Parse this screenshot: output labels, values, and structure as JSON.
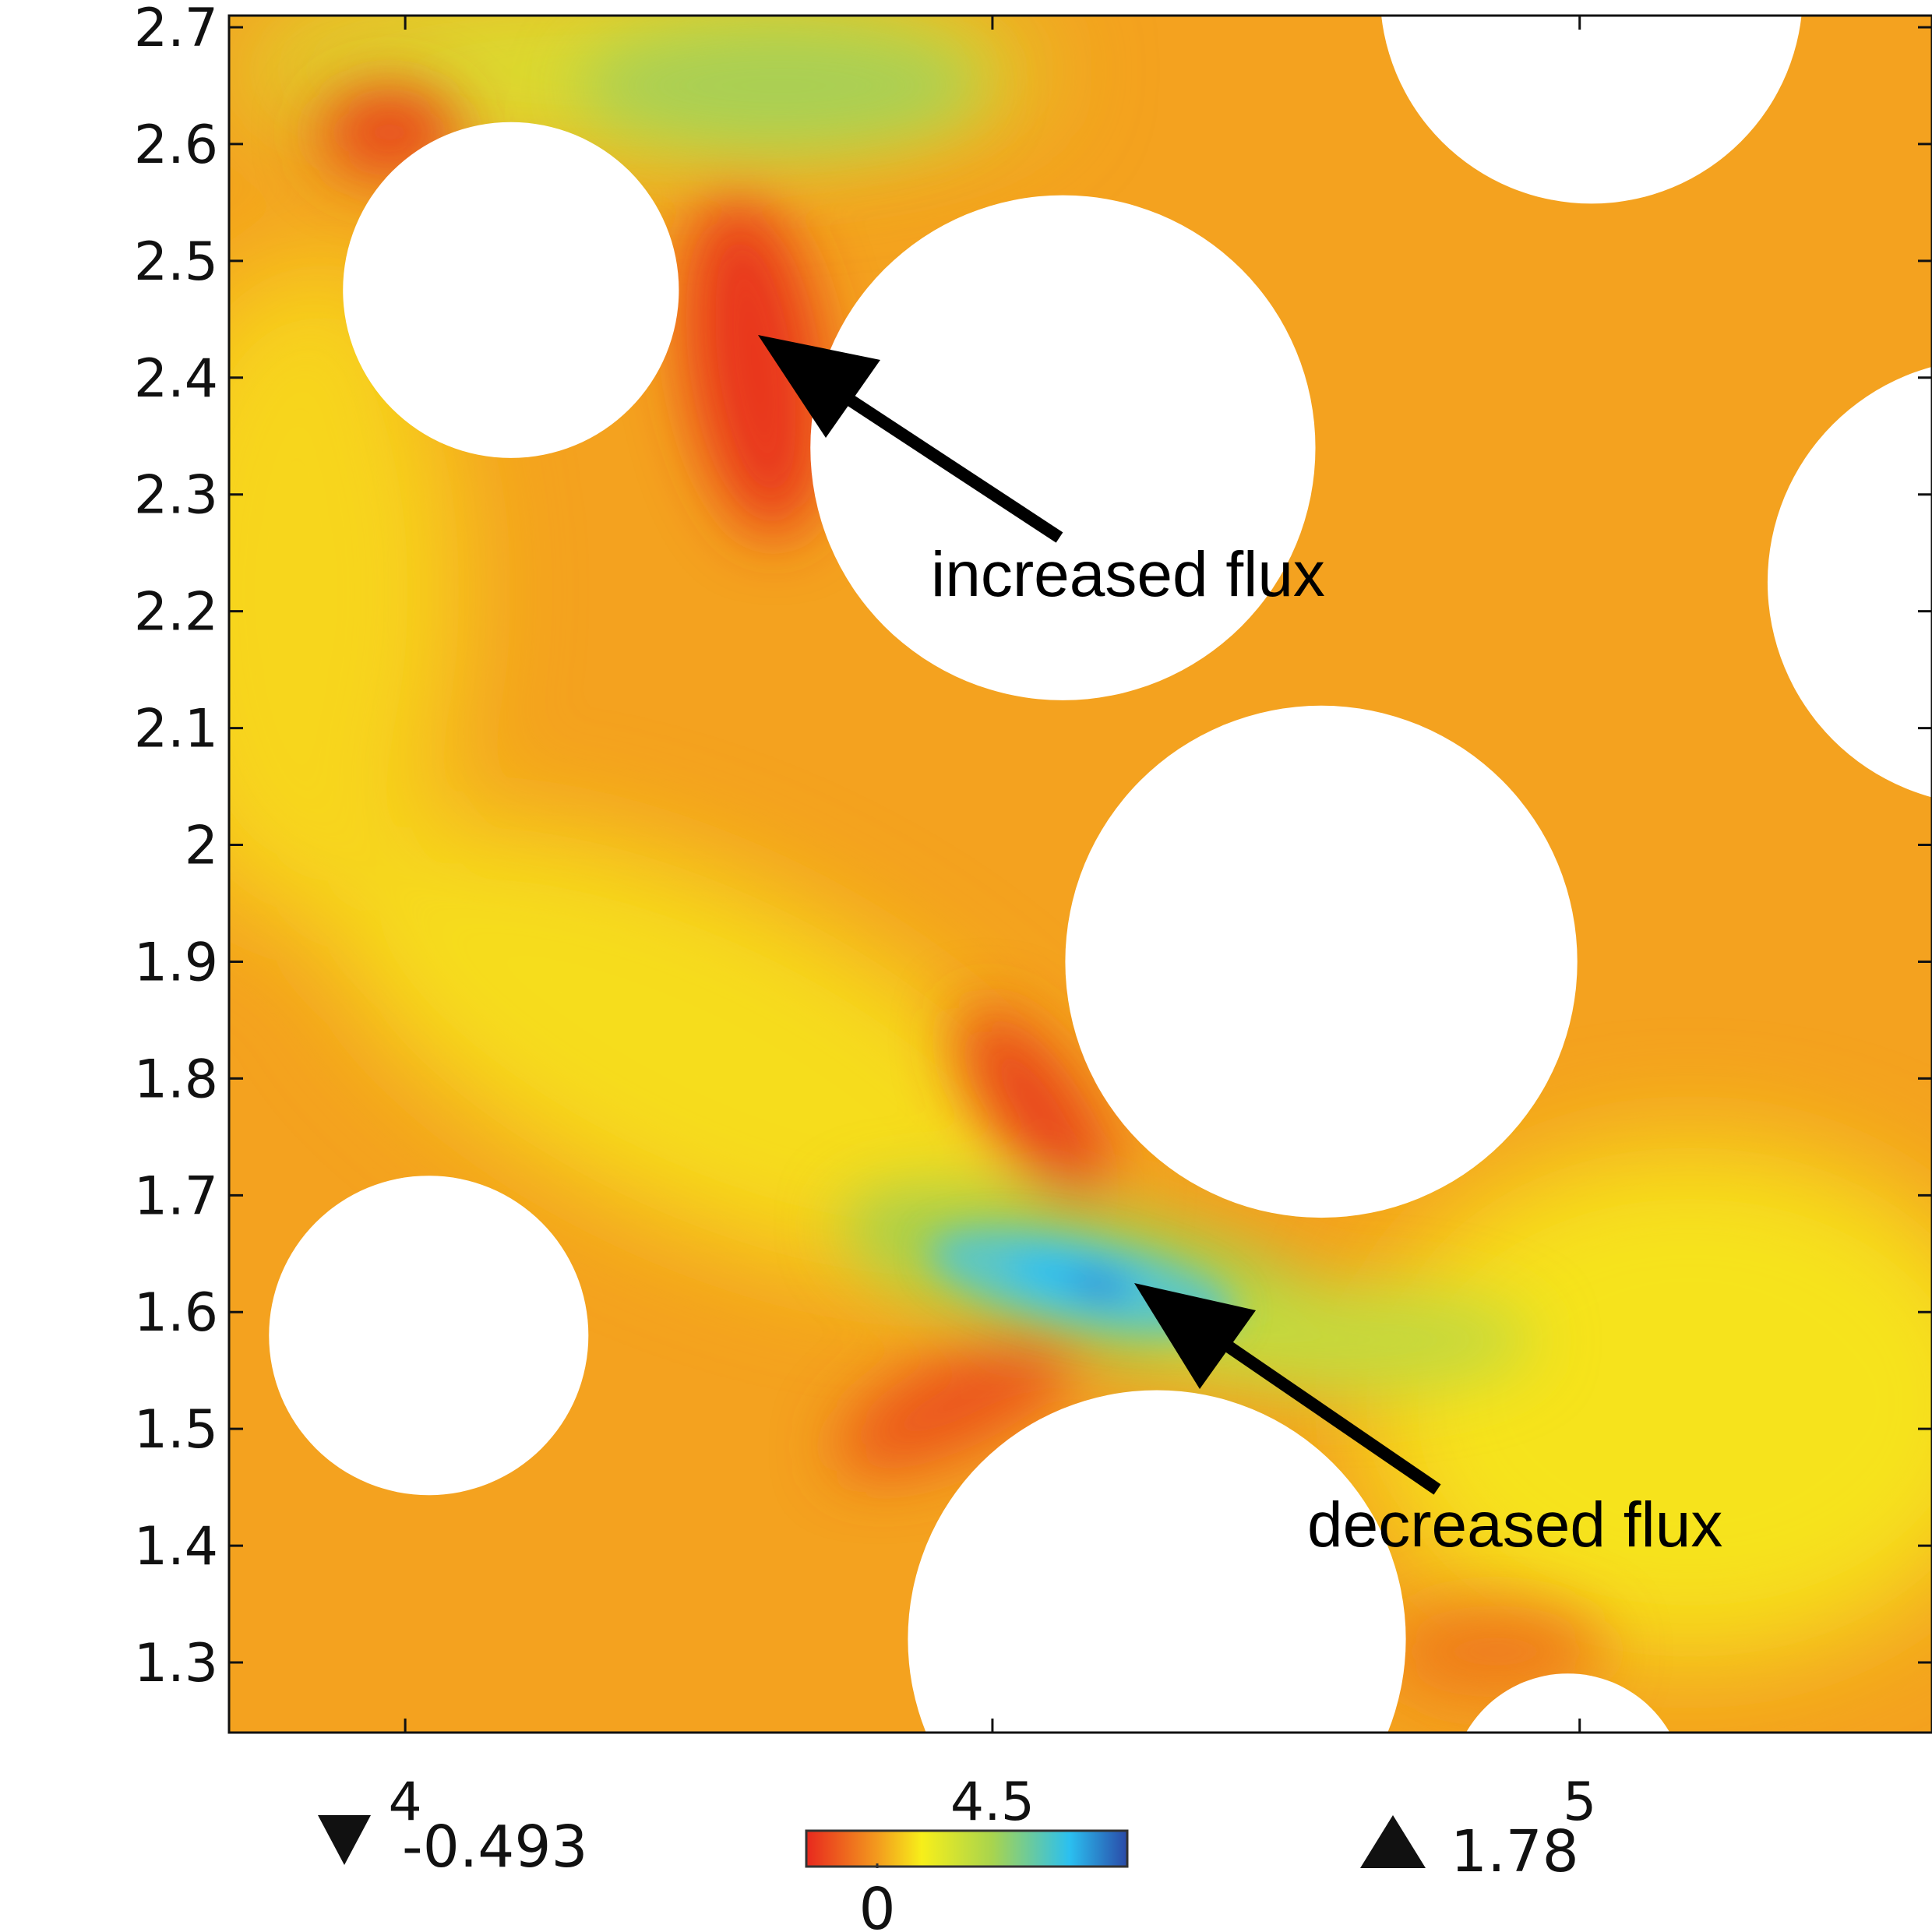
{
  "chart_data": {
    "type": "heatmap",
    "xlim": [
      3.85,
      5.3
    ],
    "ylim": [
      1.24,
      2.71
    ],
    "x_ticks": [
      "4",
      "4.5",
      "5"
    ],
    "y_ticks": [
      "1.3",
      "1.4",
      "1.5",
      "1.6",
      "1.7",
      "1.8",
      "1.9",
      "2",
      "2.1",
      "2.2",
      "2.3",
      "2.4",
      "2.5",
      "2.6",
      "2.7"
    ],
    "x_tick_values": [
      4,
      4.5,
      5
    ],
    "y_tick_values": [
      1.3,
      1.4,
      1.5,
      1.6,
      1.7,
      1.8,
      1.9,
      2.0,
      2.1,
      2.2,
      2.3,
      2.4,
      2.5,
      2.6,
      2.7
    ],
    "colorscale": [
      "#e8281e",
      "#f39a1e",
      "#f7ef1a",
      "#a8d44e",
      "#2bc0f0",
      "#2a4aa8"
    ],
    "colorbar": {
      "min_label": "-0.493",
      "max_label": "1.78",
      "zero_label": "0"
    },
    "obstacles": [
      {
        "x": 4.09,
        "y": 2.475,
        "r": 0.143
      },
      {
        "x": 4.56,
        "y": 2.34,
        "r": 0.215
      },
      {
        "x": 5.01,
        "y": 2.73,
        "r": 0.18
      },
      {
        "x": 5.35,
        "y": 2.225,
        "r": 0.19
      },
      {
        "x": 4.78,
        "y": 1.9,
        "r": 0.218
      },
      {
        "x": 4.02,
        "y": 1.58,
        "r": 0.136
      },
      {
        "x": 4.64,
        "y": 1.32,
        "r": 0.212
      },
      {
        "x": 4.99,
        "y": 1.19,
        "r": 0.1
      }
    ],
    "annotations": [
      {
        "text": "increased flux",
        "arrow_tip": [
          4.3,
          2.43
        ]
      },
      {
        "text": "decreased flux",
        "arrow_tip": [
          4.61,
          1.625
        ]
      }
    ]
  }
}
